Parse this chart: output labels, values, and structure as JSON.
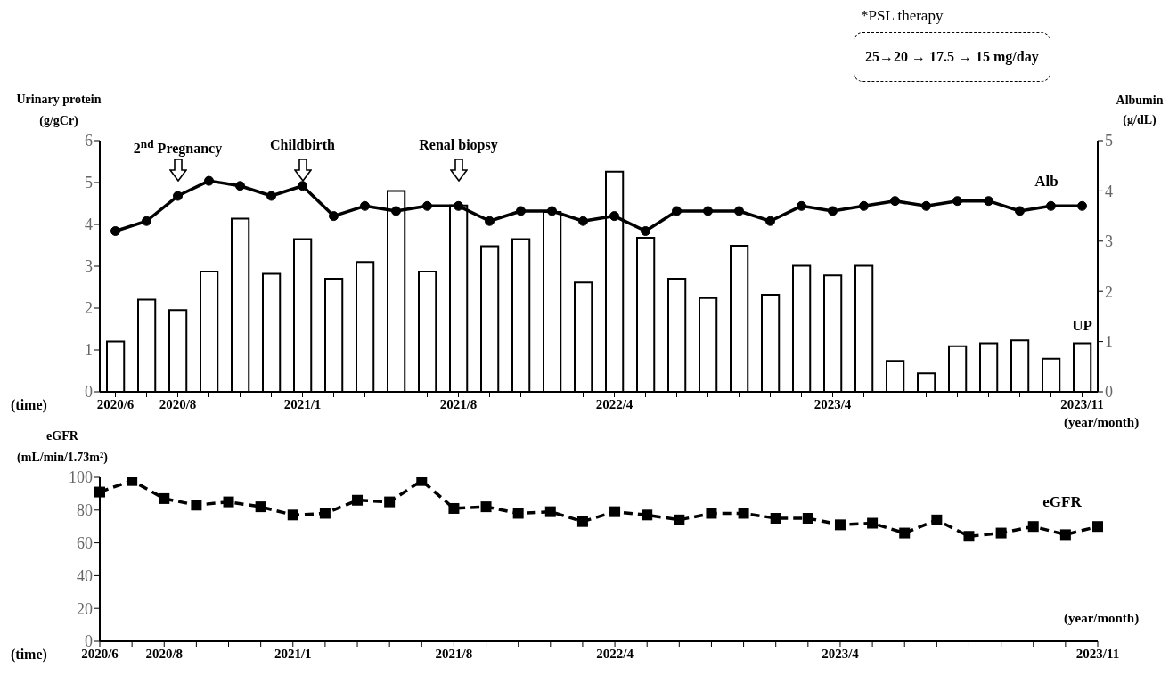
{
  "chart_data": [
    {
      "type": "bar",
      "categories": [
        "2020/6",
        null,
        "2020/8",
        null,
        null,
        null,
        "2021/1",
        null,
        null,
        null,
        null,
        "2021/8",
        null,
        null,
        null,
        null,
        "2022/4",
        null,
        null,
        null,
        null,
        null,
        null,
        "2023/4",
        null,
        null,
        null,
        null,
        null,
        null,
        null,
        "2023/11"
      ],
      "series": [
        {
          "name": "UP",
          "color": "#ffffff",
          "values": [
            1.2,
            2.2,
            1.95,
            2.87,
            4.14,
            2.82,
            3.65,
            2.7,
            3.1,
            4.8,
            2.87,
            4.45,
            3.48,
            3.65,
            4.3,
            2.61,
            5.26,
            3.68,
            2.7,
            2.24,
            3.49,
            2.32,
            3.01,
            2.78,
            3.01,
            0.74,
            0.44,
            1.09,
            1.16,
            1.23,
            0.79,
            1.16
          ]
        },
        {
          "type": "line",
          "name": "Alb",
          "color": "#000000",
          "axis": "y2",
          "marker": "circle",
          "values": [
            3.2,
            3.4,
            3.9,
            4.2,
            4.1,
            3.9,
            4.1,
            3.5,
            3.7,
            3.6,
            3.7,
            3.7,
            3.4,
            3.6,
            3.6,
            3.4,
            3.5,
            3.2,
            3.6,
            3.6,
            3.6,
            3.4,
            3.7,
            3.6,
            3.7,
            3.8,
            3.7,
            3.8,
            3.8,
            3.6,
            3.7,
            3.7
          ]
        }
      ],
      "ylabel": "Urinary protein (g/gCr)",
      "y2label": "Albumin (g/dL)",
      "xlabel": "(year/month)",
      "ylim": [
        0,
        6
      ],
      "yticks": [
        0,
        1,
        2,
        3,
        4,
        5,
        6
      ],
      "y2lim": [
        0,
        5
      ],
      "y2ticks": [
        0,
        1,
        2,
        3,
        4,
        5
      ],
      "annotations": [
        "(time)",
        "*PSL therapy",
        "25→20 → 17.5 → 15 mg/day",
        "2$^{nd}$ Pregnancy",
        "Childbirth",
        "Renal biopsy"
      ]
    },
    {
      "type": "line",
      "categories": [
        "2020/6",
        null,
        "2020/8",
        null,
        null,
        null,
        "2021/1",
        null,
        null,
        null,
        null,
        "2021/8",
        null,
        null,
        null,
        null,
        "2022/4",
        null,
        null,
        null,
        null,
        null,
        null,
        "2023/4",
        null,
        null,
        null,
        null,
        null,
        null,
        null,
        "2023/11"
      ],
      "series": [
        {
          "name": "eGFR",
          "color": "#000000",
          "values": [
            91,
            98,
            87,
            83,
            85,
            82,
            77,
            78,
            86,
            85,
            98,
            81,
            82,
            78,
            79,
            73,
            79,
            77,
            74,
            78,
            78,
            75,
            75,
            71,
            72,
            66,
            74,
            64,
            66,
            70,
            65,
            70
          ]
        }
      ],
      "marker": "square",
      "line_style": "dashed",
      "ylabel": "eGFR (mL/min/1.73m²)",
      "xlabel": "(year/month)",
      "ylim": [
        0,
        100
      ],
      "yticks": [
        0,
        20,
        40,
        60,
        80,
        100
      ],
      "annotations": [
        "(time)"
      ]
    }
  ]
}
